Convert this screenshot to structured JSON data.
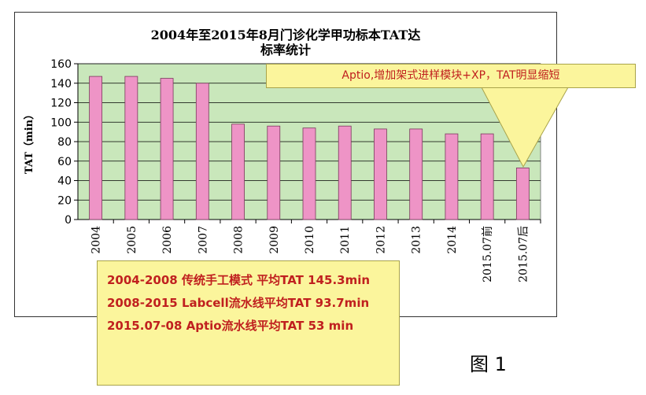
{
  "chart_data": {
    "type": "bar",
    "title": "2004年至2015年8月门诊化学甲功标本TAT达",
    "title_line2": "标率统计",
    "ylabel": "TAT（min）",
    "xlabel": "",
    "ylim": [
      0,
      160
    ],
    "yticks": [
      "0",
      "20",
      "40",
      "60",
      "80",
      "100",
      "120",
      "140",
      "160"
    ],
    "grid": true,
    "categories": [
      "2004",
      "2005",
      "2006",
      "2007",
      "2008",
      "2009",
      "2010",
      "2011",
      "2012",
      "2013",
      "2014",
      "2015.07前",
      "2015.07后"
    ],
    "values": [
      147,
      147,
      145,
      140,
      98,
      96,
      94,
      96,
      93,
      93,
      88,
      88,
      53
    ]
  },
  "callout": "Aptio,增加架式进样模块+XP，TAT明显缩短",
  "summary": [
    "2004-2008 传统手工模式 平均TAT 145.3min",
    "2008-2015 Labcell流水线平均TAT 93.7min",
    "2015.07-08 Aptio流水线平均TAT 53 min"
  ],
  "figure_label": "图 1",
  "colors": {
    "plot_bg": "#c9e7bb",
    "bar": "#ee94c6",
    "bar_stroke": "#7a3a5c",
    "callout_bg": "#fbf59c",
    "callout_text": "#c0201f"
  }
}
